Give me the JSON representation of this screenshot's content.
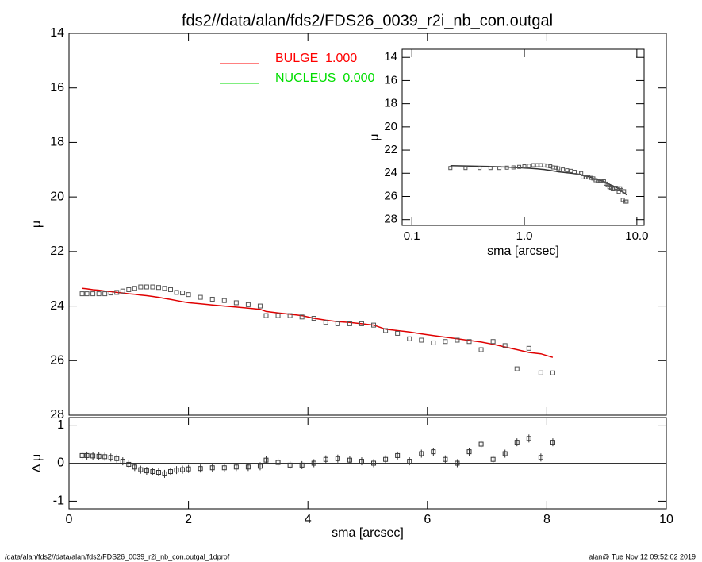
{
  "chart_data": [
    {
      "type": "scatter",
      "title": "fds2//data/alan/fds2/FDS26_0039_r2i_nb_con.outgal",
      "ylabel": "μ",
      "x": [
        0.22,
        0.3,
        0.4,
        0.5,
        0.6,
        0.7,
        0.8,
        0.9,
        1.0,
        1.1,
        1.2,
        1.3,
        1.4,
        1.5,
        1.6,
        1.7,
        1.8,
        1.9,
        2.0,
        2.2,
        2.4,
        2.6,
        2.8,
        3.0,
        3.2,
        3.3,
        3.5,
        3.7,
        3.9,
        4.1,
        4.3,
        4.5,
        4.7,
        4.9,
        5.1,
        5.3,
        5.5,
        5.7,
        5.9,
        6.1,
        6.3,
        6.5,
        6.7,
        6.9,
        7.1,
        7.3,
        7.5,
        7.7,
        7.9,
        8.1
      ],
      "values": [
        23.55,
        23.55,
        23.55,
        23.55,
        23.55,
        23.52,
        23.5,
        23.45,
        23.4,
        23.35,
        23.3,
        23.3,
        23.3,
        23.32,
        23.35,
        23.4,
        23.5,
        23.52,
        23.58,
        23.68,
        23.75,
        23.8,
        23.88,
        23.95,
        24.0,
        24.35,
        24.35,
        24.35,
        24.4,
        24.45,
        24.6,
        24.65,
        24.65,
        24.65,
        24.7,
        24.9,
        25.0,
        25.2,
        25.25,
        25.35,
        25.3,
        25.25,
        25.3,
        25.6,
        25.3,
        25.45,
        26.3,
        25.55,
        26.45,
        26.45
      ],
      "model_values": [
        23.35,
        23.37,
        23.4,
        23.42,
        23.45,
        23.47,
        23.5,
        23.52,
        23.55,
        23.57,
        23.6,
        23.62,
        23.65,
        23.68,
        23.72,
        23.76,
        23.8,
        23.84,
        23.88,
        23.92,
        23.96,
        24.0,
        24.04,
        24.08,
        24.12,
        24.2,
        24.25,
        24.3,
        24.35,
        24.45,
        24.52,
        24.57,
        24.6,
        24.65,
        24.7,
        24.85,
        24.9,
        24.95,
        25.02,
        25.08,
        25.14,
        25.2,
        25.26,
        25.32,
        25.4,
        25.5,
        25.6,
        25.7,
        25.75,
        25.88
      ],
      "color": "#555555",
      "model_color": "#e00000",
      "legend": [
        {
          "name": "BULGE  1.000",
          "color": "#ff0000"
        },
        {
          "name": "NUCLEUS  0.000",
          "color": "#00dd00"
        }
      ],
      "xlim": [
        0,
        10
      ],
      "xticks": [
        0,
        2,
        4,
        6,
        8,
        10
      ],
      "xtick_labels": false,
      "ylim": [
        14,
        28
      ],
      "y_inverted": true,
      "yticks": [
        14,
        16,
        18,
        20,
        22,
        24,
        26,
        28
      ]
    },
    {
      "type": "scatter",
      "xlabel": "sma [arcsec]",
      "ylabel": "Δ μ",
      "x": [
        0.22,
        0.3,
        0.4,
        0.5,
        0.6,
        0.7,
        0.8,
        0.9,
        1.0,
        1.1,
        1.2,
        1.3,
        1.4,
        1.5,
        1.6,
        1.7,
        1.8,
        1.9,
        2.0,
        2.2,
        2.4,
        2.6,
        2.8,
        3.0,
        3.2,
        3.3,
        3.5,
        3.7,
        3.9,
        4.1,
        4.3,
        4.5,
        4.7,
        4.9,
        5.1,
        5.3,
        5.5,
        5.7,
        5.9,
        6.1,
        6.3,
        6.5,
        6.7,
        6.9,
        7.1,
        7.3,
        7.5,
        7.7,
        7.9,
        8.1
      ],
      "values": [
        0.2,
        0.2,
        0.19,
        0.18,
        0.17,
        0.15,
        0.12,
        0.05,
        -0.03,
        -0.1,
        -0.17,
        -0.2,
        -0.22,
        -0.24,
        -0.28,
        -0.22,
        -0.18,
        -0.17,
        -0.15,
        -0.14,
        -0.12,
        -0.12,
        -0.1,
        -0.1,
        -0.08,
        0.08,
        0.02,
        -0.05,
        -0.05,
        0.0,
        0.1,
        0.12,
        0.08,
        0.05,
        0.0,
        0.1,
        0.2,
        0.05,
        0.25,
        0.3,
        0.1,
        0.0,
        0.3,
        0.5,
        0.1,
        0.25,
        0.55,
        0.65,
        0.15,
        0.55
      ],
      "color": "#333333",
      "xlim": [
        0,
        10
      ],
      "xticks": [
        0,
        2,
        4,
        6,
        8,
        10
      ],
      "xtick_labels": true,
      "ylim": [
        -1.2,
        1.2
      ],
      "y_inverted": false,
      "yticks": [
        1,
        0,
        -1
      ]
    },
    {
      "type": "scatter",
      "xlabel": "sma [arcsec]",
      "ylabel": "μ",
      "log_x": true,
      "x": [
        0.22,
        0.3,
        0.4,
        0.5,
        0.6,
        0.7,
        0.8,
        0.9,
        1.0,
        1.1,
        1.2,
        1.3,
        1.4,
        1.5,
        1.6,
        1.7,
        1.8,
        1.9,
        2.0,
        2.2,
        2.4,
        2.6,
        2.8,
        3.0,
        3.2,
        3.3,
        3.5,
        3.7,
        3.9,
        4.1,
        4.3,
        4.5,
        4.7,
        4.9,
        5.1,
        5.3,
        5.5,
        5.7,
        5.9,
        6.1,
        6.3,
        6.5,
        6.7,
        6.9,
        7.1,
        7.3,
        7.5,
        7.7,
        7.9,
        8.1
      ],
      "values": [
        23.55,
        23.55,
        23.55,
        23.55,
        23.55,
        23.52,
        23.5,
        23.45,
        23.4,
        23.35,
        23.3,
        23.3,
        23.3,
        23.32,
        23.35,
        23.4,
        23.5,
        23.52,
        23.58,
        23.68,
        23.75,
        23.8,
        23.88,
        23.95,
        24.0,
        24.35,
        24.35,
        24.35,
        24.4,
        24.45,
        24.6,
        24.65,
        24.65,
        24.65,
        24.7,
        24.9,
        25.0,
        25.2,
        25.25,
        25.35,
        25.3,
        25.25,
        25.3,
        25.6,
        25.3,
        25.45,
        26.3,
        25.55,
        26.45,
        26.45
      ],
      "model_values": [
        23.35,
        23.37,
        23.4,
        23.42,
        23.45,
        23.47,
        23.5,
        23.52,
        23.55,
        23.57,
        23.6,
        23.62,
        23.65,
        23.68,
        23.72,
        23.76,
        23.8,
        23.84,
        23.88,
        23.92,
        23.96,
        24.0,
        24.04,
        24.08,
        24.12,
        24.2,
        24.25,
        24.3,
        24.35,
        24.45,
        24.52,
        24.57,
        24.6,
        24.65,
        24.7,
        24.85,
        24.9,
        24.95,
        25.02,
        25.08,
        25.14,
        25.2,
        25.26,
        25.32,
        25.4,
        25.5,
        25.6,
        25.7,
        25.75,
        25.88
      ],
      "color": "#555555",
      "model_color": "#333333",
      "xlim": [
        0.082,
        11.6
      ],
      "xticks": [
        {
          "value": 0.1,
          "label": "0.1"
        },
        {
          "value": 1,
          "label": "1.0"
        },
        {
          "value": 10,
          "label": "10.0"
        }
      ],
      "xtick_labels": true,
      "ylim": [
        13.3,
        28.5
      ],
      "y_inverted": true,
      "yticks": [
        14,
        16,
        18,
        20,
        22,
        24,
        26,
        28
      ]
    }
  ],
  "footer_left": "/data/alan/fds2//data/alan/fds2/FDS26_0039_r2i_nb_con.outgal_1dprof",
  "footer_right": "alan@  Tue Nov 12 09:52:02 2019"
}
